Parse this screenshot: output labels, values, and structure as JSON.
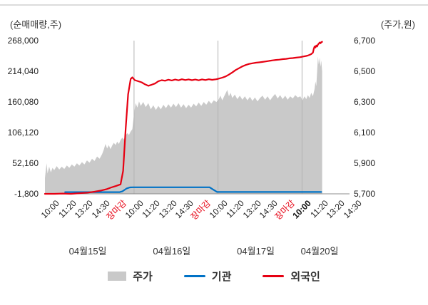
{
  "chart_data": {
    "type": "line",
    "title": "",
    "left_axis": {
      "title": "(순매매량,주)",
      "ticks": [
        "268,000",
        "214,040",
        "160,080",
        "106,120",
        "52,160",
        "-1,800"
      ],
      "min": -1800,
      "max": 268000
    },
    "right_axis": {
      "title": "(주가,원)",
      "ticks": [
        "6,700",
        "6,500",
        "6,300",
        "6,100",
        "5,900",
        "5,700"
      ],
      "min": 5700,
      "max": 6700
    },
    "x_axis": {
      "ticks": [
        {
          "label": "10:00"
        },
        {
          "label": "11:20"
        },
        {
          "label": "13:20"
        },
        {
          "label": "14:30"
        },
        {
          "label": "장마감",
          "red": true
        },
        {
          "label": "10:00"
        },
        {
          "label": "11:20"
        },
        {
          "label": "13:20"
        },
        {
          "label": "14:30"
        },
        {
          "label": "장마감",
          "red": true
        },
        {
          "label": "10:00"
        },
        {
          "label": "11:20"
        },
        {
          "label": "13:20"
        },
        {
          "label": "14:30"
        },
        {
          "label": "장마감",
          "red": true
        },
        {
          "label": "10:00",
          "bold": true
        },
        {
          "label": "11:20"
        },
        {
          "label": "13:20"
        },
        {
          "label": "14:30"
        }
      ],
      "day_labels": [
        "04월15일",
        "04월16일",
        "04월17일",
        "04월20일"
      ]
    },
    "series": [
      {
        "name": "주가",
        "kind": "area",
        "axis": "left",
        "color": "#c9c9c9",
        "points": [
          [
            -0.55,
            26000
          ],
          [
            -0.5,
            40000
          ],
          [
            -0.45,
            52000
          ],
          [
            -0.4,
            34000
          ],
          [
            -0.3,
            46000
          ],
          [
            -0.2,
            36000
          ],
          [
            -0.1,
            44000
          ],
          [
            0,
            40000
          ],
          [
            0.15,
            47000
          ],
          [
            0.3,
            41000
          ],
          [
            0.45,
            46000
          ],
          [
            0.6,
            42000
          ],
          [
            0.75,
            48000
          ],
          [
            0.9,
            44000
          ],
          [
            1.05,
            50000
          ],
          [
            1.2,
            46000
          ],
          [
            1.35,
            52000
          ],
          [
            1.5,
            48000
          ],
          [
            1.65,
            54000
          ],
          [
            1.8,
            50000
          ],
          [
            1.95,
            57000
          ],
          [
            2.1,
            53000
          ],
          [
            2.25,
            60000
          ],
          [
            2.4,
            56000
          ],
          [
            2.55,
            64000
          ],
          [
            2.7,
            60000
          ],
          [
            2.85,
            68000
          ],
          [
            2.95,
            76000
          ],
          [
            3.05,
            86000
          ],
          [
            3.15,
            78000
          ],
          [
            3.25,
            84000
          ],
          [
            3.35,
            77000
          ],
          [
            3.45,
            83000
          ],
          [
            3.55,
            88000
          ],
          [
            3.65,
            84000
          ],
          [
            3.75,
            90000
          ],
          [
            3.85,
            86000
          ],
          [
            3.95,
            93000
          ],
          [
            4.05,
            97000
          ],
          [
            4.15,
            94000
          ],
          [
            4.25,
            101000
          ],
          [
            4.35,
            105000
          ],
          [
            4.45,
            102000
          ],
          [
            4.55,
            108000
          ],
          [
            4.65,
            112000
          ],
          [
            4.78,
            146000
          ],
          [
            4.85,
            158000
          ],
          [
            4.95,
            150000
          ],
          [
            5.05,
            161000
          ],
          [
            5.15,
            153000
          ],
          [
            5.3,
            160000
          ],
          [
            5.45,
            151000
          ],
          [
            5.6,
            158000
          ],
          [
            5.75,
            147000
          ],
          [
            5.9,
            154000
          ],
          [
            6.05,
            146000
          ],
          [
            6.2,
            153000
          ],
          [
            6.35,
            147000
          ],
          [
            6.5,
            155000
          ],
          [
            6.65,
            149000
          ],
          [
            6.8,
            156000
          ],
          [
            6.95,
            150000
          ],
          [
            7.1,
            157000
          ],
          [
            7.25,
            151000
          ],
          [
            7.4,
            158000
          ],
          [
            7.55,
            150000
          ],
          [
            7.7,
            156000
          ],
          [
            7.85,
            149000
          ],
          [
            8.0,
            155000
          ],
          [
            8.15,
            150000
          ],
          [
            8.3,
            157000
          ],
          [
            8.45,
            152000
          ],
          [
            8.6,
            159000
          ],
          [
            8.75,
            153000
          ],
          [
            8.9,
            160000
          ],
          [
            9.05,
            155000
          ],
          [
            9.2,
            162000
          ],
          [
            9.35,
            157000
          ],
          [
            9.5,
            163000
          ],
          [
            9.65,
            160000
          ],
          [
            9.78,
            164000
          ],
          [
            9.9,
            171000
          ],
          [
            10.0,
            163000
          ],
          [
            10.1,
            169000
          ],
          [
            10.2,
            175000
          ],
          [
            10.3,
            181000
          ],
          [
            10.4,
            170000
          ],
          [
            10.5,
            176000
          ],
          [
            10.6,
            167000
          ],
          [
            10.75,
            173000
          ],
          [
            10.9,
            165000
          ],
          [
            11.05,
            171000
          ],
          [
            11.2,
            164000
          ],
          [
            11.35,
            170000
          ],
          [
            11.5,
            163000
          ],
          [
            11.65,
            169000
          ],
          [
            11.8,
            162000
          ],
          [
            11.95,
            168000
          ],
          [
            12.1,
            161000
          ],
          [
            12.25,
            167000
          ],
          [
            12.4,
            171000
          ],
          [
            12.55,
            164000
          ],
          [
            12.7,
            170000
          ],
          [
            12.85,
            163000
          ],
          [
            13.0,
            169000
          ],
          [
            13.15,
            174000
          ],
          [
            13.3,
            166000
          ],
          [
            13.45,
            172000
          ],
          [
            13.6,
            165000
          ],
          [
            13.75,
            171000
          ],
          [
            13.9,
            164000
          ],
          [
            14.05,
            170000
          ],
          [
            14.2,
            166000
          ],
          [
            14.35,
            172000
          ],
          [
            14.5,
            168000
          ],
          [
            14.65,
            170000
          ],
          [
            14.78,
            163000
          ],
          [
            14.9,
            170000
          ],
          [
            15.0,
            165000
          ],
          [
            15.1,
            172000
          ],
          [
            15.2,
            167000
          ],
          [
            15.3,
            176000
          ],
          [
            15.4,
            170000
          ],
          [
            15.5,
            183000
          ],
          [
            15.55,
            196000
          ],
          [
            15.6,
            188000
          ],
          [
            15.65,
            214000
          ],
          [
            15.7,
            240000
          ],
          [
            15.75,
            226000
          ],
          [
            15.8,
            238000
          ],
          [
            15.85,
            222000
          ],
          [
            15.9,
            233000
          ],
          [
            15.95,
            214000
          ]
        ]
      },
      {
        "name": "기관",
        "kind": "line",
        "axis": "left",
        "color": "#0072c6",
        "points": [
          [
            0.65,
            1200
          ],
          [
            3.9,
            1200
          ],
          [
            4.05,
            2500
          ],
          [
            4.3,
            7500
          ],
          [
            4.5,
            9500
          ],
          [
            4.7,
            9800
          ],
          [
            9.25,
            9800
          ],
          [
            9.45,
            6000
          ],
          [
            9.7,
            1500
          ],
          [
            15.9,
            1500
          ]
        ]
      },
      {
        "name": "외국인",
        "kind": "line",
        "axis": "right",
        "color": "#e60012",
        "points": [
          [
            -0.55,
            5700
          ],
          [
            0,
            5700
          ],
          [
            0.5,
            5702
          ],
          [
            1.0,
            5700
          ],
          [
            1.5,
            5704
          ],
          [
            2.0,
            5708
          ],
          [
            2.4,
            5714
          ],
          [
            2.8,
            5722
          ],
          [
            3.1,
            5730
          ],
          [
            3.4,
            5742
          ],
          [
            3.7,
            5752
          ],
          [
            3.95,
            5762
          ],
          [
            4.1,
            5850
          ],
          [
            4.25,
            6120
          ],
          [
            4.4,
            6350
          ],
          [
            4.55,
            6450
          ],
          [
            4.65,
            6460
          ],
          [
            4.8,
            6442
          ],
          [
            5.0,
            6435
          ],
          [
            5.2,
            6428
          ],
          [
            5.4,
            6415
          ],
          [
            5.6,
            6405
          ],
          [
            5.8,
            6412
          ],
          [
            6.0,
            6420
          ],
          [
            6.2,
            6435
          ],
          [
            6.4,
            6442
          ],
          [
            6.6,
            6438
          ],
          [
            6.8,
            6445
          ],
          [
            7.0,
            6440
          ],
          [
            7.2,
            6446
          ],
          [
            7.4,
            6441
          ],
          [
            7.6,
            6448
          ],
          [
            7.8,
            6443
          ],
          [
            8.0,
            6447
          ],
          [
            8.2,
            6442
          ],
          [
            8.4,
            6446
          ],
          [
            8.6,
            6441
          ],
          [
            8.8,
            6447
          ],
          [
            9.0,
            6443
          ],
          [
            9.2,
            6448
          ],
          [
            9.4,
            6444
          ],
          [
            9.65,
            6448
          ],
          [
            9.8,
            6452
          ],
          [
            10.0,
            6458
          ],
          [
            10.2,
            6466
          ],
          [
            10.4,
            6478
          ],
          [
            10.6,
            6492
          ],
          [
            10.8,
            6508
          ],
          [
            11.0,
            6520
          ],
          [
            11.2,
            6532
          ],
          [
            11.4,
            6541
          ],
          [
            11.6,
            6548
          ],
          [
            11.8,
            6552
          ],
          [
            12.0,
            6556
          ],
          [
            12.2,
            6558
          ],
          [
            12.4,
            6561
          ],
          [
            12.6,
            6564
          ],
          [
            12.8,
            6568
          ],
          [
            13.0,
            6571
          ],
          [
            13.2,
            6574
          ],
          [
            13.4,
            6576
          ],
          [
            13.6,
            6579
          ],
          [
            13.8,
            6581
          ],
          [
            14.0,
            6584
          ],
          [
            14.2,
            6586
          ],
          [
            14.4,
            6589
          ],
          [
            14.65,
            6592
          ],
          [
            14.8,
            6596
          ],
          [
            15.0,
            6600
          ],
          [
            15.1,
            6603
          ],
          [
            15.2,
            6607
          ],
          [
            15.3,
            6612
          ],
          [
            15.4,
            6622
          ],
          [
            15.45,
            6645
          ],
          [
            15.5,
            6662
          ],
          [
            15.55,
            6655
          ],
          [
            15.6,
            6668
          ],
          [
            15.65,
            6662
          ],
          [
            15.7,
            6674
          ],
          [
            15.75,
            6680
          ],
          [
            15.8,
            6688
          ],
          [
            15.85,
            6683
          ],
          [
            15.9,
            6690
          ],
          [
            15.95,
            6692
          ]
        ]
      }
    ],
    "legend": [
      {
        "label": "주가",
        "swatch": "area",
        "color": "#c9c9c9"
      },
      {
        "label": "기관",
        "swatch": "line",
        "color": "#0072c6"
      },
      {
        "label": "외국인",
        "swatch": "line",
        "color": "#e60012"
      }
    ],
    "colors": {
      "separator": "#b3b3b3",
      "axis_line": "#8c8c8c",
      "close_label": "#e60012"
    }
  }
}
